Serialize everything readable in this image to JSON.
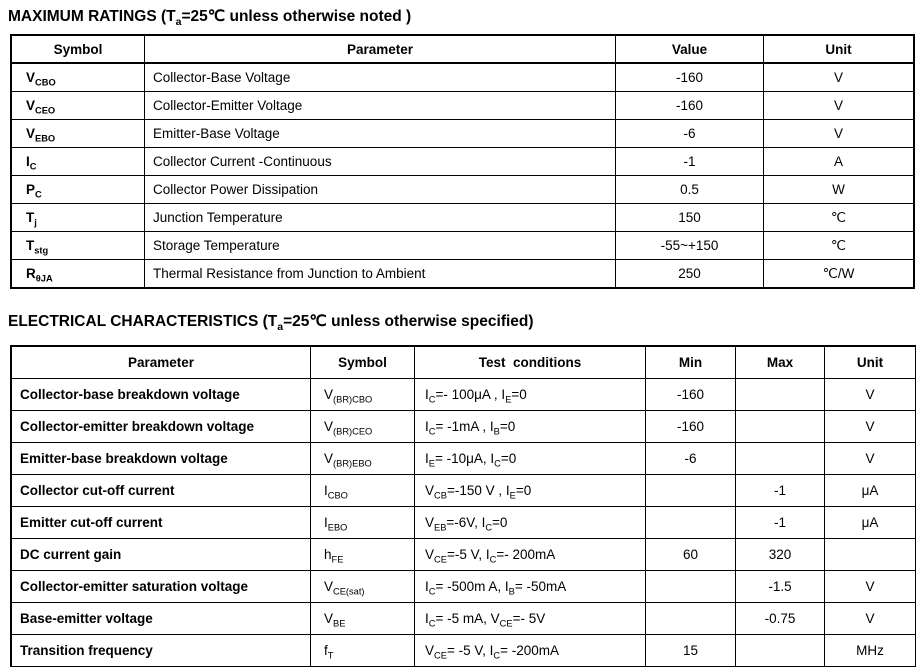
{
  "max_ratings": {
    "title": "MAXIMUM RATINGS (T_{a}=25℃ unless otherwise noted )",
    "headers": [
      "Symbol",
      "Parameter",
      "Value",
      "Unit"
    ],
    "rows": [
      [
        "V_{CBO}",
        "Collector-Base Voltage",
        "-160",
        "V"
      ],
      [
        "V_{CEO}",
        "Collector-Emitter Voltage",
        "-160",
        "V"
      ],
      [
        "V_{EBO}",
        "Emitter-Base Voltage",
        "-6",
        "V"
      ],
      [
        "I_{C}",
        "Collector Current -Continuous",
        "-1",
        "A"
      ],
      [
        "P_{C}",
        "Collector Power Dissipation",
        "0.5",
        "W"
      ],
      [
        "T_{j}",
        "Junction Temperature",
        "150",
        "℃"
      ],
      [
        "T_{stg}",
        "Storage Temperature",
        "-55~+150",
        "℃"
      ],
      [
        "R_{θJA}",
        "Thermal Resistance from Junction to Ambient",
        "250",
        "℃/W"
      ]
    ]
  },
  "electrical": {
    "title": "ELECTRICAL CHARACTERISTICS (T_{a}=25℃ unless otherwise specified)",
    "headers": [
      "Parameter",
      "Symbol",
      "Test  conditions",
      "Min",
      "Max",
      "Unit"
    ],
    "rows": [
      [
        "Collector-base breakdown voltage",
        "V_{(BR)CBO}",
        "I_{C}=- 100μA , I_{E}=0",
        "-160",
        "",
        "V"
      ],
      [
        "Collector-emitter breakdown voltage",
        "V_{(BR)CEO}",
        "I_{C}= -1mA , I_{B}=0",
        "-160",
        "",
        "V"
      ],
      [
        "Emitter-base breakdown voltage",
        "V_{(BR)EBO}",
        "I_{E}= -10μA, I_{C}=0",
        "-6",
        "",
        "V"
      ],
      [
        "Collector cut-off current",
        "I_{CBO}",
        "V_{CB}=-150 V , I_{E}=0",
        "",
        "-1",
        "μA"
      ],
      [
        "Emitter cut-off current",
        "I_{EBO}",
        "V_{EB}=-6V, I_{C}=0",
        "",
        "-1",
        "μA"
      ],
      [
        "DC current gain",
        "h_{FE}",
        "V_{CE}=-5 V, I_{C}=- 200mA",
        "60",
        "320",
        ""
      ],
      [
        "Collector-emitter saturation voltage",
        "V_{CE(sat)}",
        "I_{C}= -500m A, I_{B}= -50mA",
        "",
        "-1.5",
        "V"
      ],
      [
        "Base-emitter voltage",
        "V_{BE}",
        "I_{C}= -5 mA, V_{CE}=- 5V",
        "",
        "-0.75",
        "V"
      ],
      [
        "Transition frequency",
        "f_{T}",
        "V_{CE}= -5 V, I_{C}= -200mA",
        "15",
        "",
        "MHz"
      ]
    ]
  }
}
